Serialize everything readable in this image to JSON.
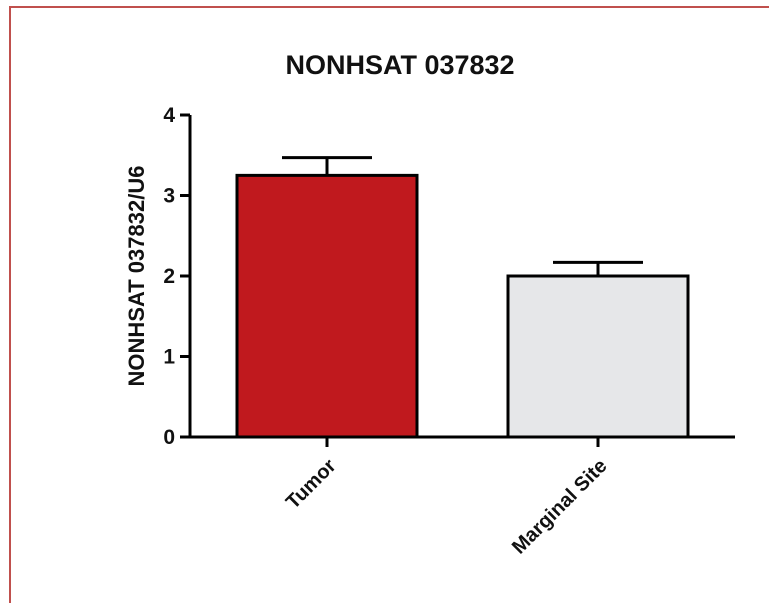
{
  "chart_data": {
    "type": "bar",
    "title": "NONHSAT 037832",
    "ylabel": "NONHSAT 037832/U6",
    "xlabel": "",
    "categories": [
      "Tumor",
      "Marginal Site"
    ],
    "values": [
      3.25,
      2.0
    ],
    "errors": [
      0.22,
      0.17
    ],
    "ylim": [
      0,
      4
    ],
    "yticks": [
      "0",
      "1",
      "2",
      "3",
      "4"
    ],
    "bar_colors": [
      "#c0191e",
      "#e6e7e9"
    ],
    "grid": false,
    "legend": "none"
  }
}
